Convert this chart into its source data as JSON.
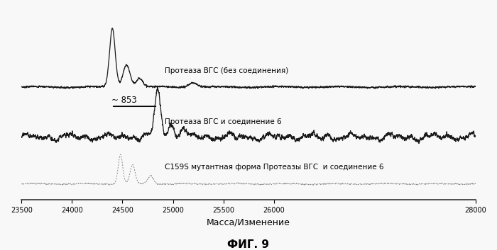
{
  "title": "ФИГ. 9",
  "xlabel": "Масса/Изменение",
  "xmin": 23500,
  "xmax": 28000,
  "xticks": [
    23500,
    24000,
    24500,
    25000,
    25500,
    26000,
    28000
  ],
  "xtick_labels": [
    "23500",
    "24000",
    "24500",
    "25000",
    "25500",
    "26000",
    "28000"
  ],
  "label1": "Протеаза ВГС (без соединения)",
  "label2": "Протеаза ВГС и соединение 6",
  "label3": "C159S мутантная форма Протеазы ВГС  и соединение 6",
  "annotation": "~ 853",
  "background_color": "#f0f0f0",
  "line_color1": "#1a1a1a",
  "line_color2": "#1a1a1a",
  "line_color3": "#888888",
  "off1": 1.5,
  "off2": 0.65,
  "off3": -0.15
}
